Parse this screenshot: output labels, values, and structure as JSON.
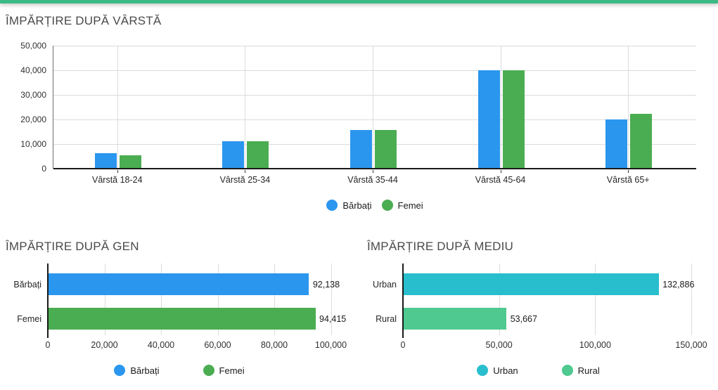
{
  "page": {
    "accent_color": "#3CB985",
    "background": "#ffffff",
    "gridline_color": "#dcdcdc",
    "axis_color": "#1a1a1a",
    "title_color": "#4a4a4a"
  },
  "chart_data": [
    {
      "type": "bar",
      "subtype": "grouped_vertical",
      "title": "ÎMPĂRȚIRE DUPĂ VÂRSTĂ",
      "categories": [
        "Vârstă 18-24",
        "Vârstă 25-34",
        "Vârstă 35-44",
        "Vârstă 45-64",
        "Vârstă 65+"
      ],
      "series": [
        {
          "name": "Bărbați",
          "color": "#2B96EE",
          "values": [
            6300,
            11200,
            15800,
            40000,
            20000
          ]
        },
        {
          "name": "Femei",
          "color": "#4BAD52",
          "values": [
            5500,
            11200,
            15800,
            40000,
            22400
          ]
        }
      ],
      "ylim": [
        0,
        50000
      ],
      "ytick_step": 10000,
      "ytick_labels": [
        "0",
        "10,000",
        "20,000",
        "30,000",
        "40,000",
        "50,000"
      ],
      "grid": true,
      "legend_position": "bottom-center"
    },
    {
      "type": "bar",
      "subtype": "horizontal",
      "title": "ÎMPĂRȚIRE DUPĂ GEN",
      "categories": [
        "Bărbați",
        "Femei"
      ],
      "values": [
        92138,
        94415
      ],
      "value_labels": [
        "92,138",
        "94,415"
      ],
      "colors": [
        "#2B96EE",
        "#4BAD52"
      ],
      "xlim": [
        0,
        100000
      ],
      "xtick_step": 20000,
      "xtick_labels": [
        "0",
        "20,000",
        "40,000",
        "60,000",
        "80,000",
        "100,000"
      ],
      "grid": true,
      "legend_position": "bottom-center"
    },
    {
      "type": "bar",
      "subtype": "horizontal",
      "title": "ÎMPĂRȚIRE DUPĂ MEDIU",
      "categories": [
        "Urban",
        "Rural"
      ],
      "values": [
        132886,
        53667
      ],
      "value_labels": [
        "132,886",
        "53,667"
      ],
      "colors": [
        "#28BECD",
        "#4FC98F"
      ],
      "xlim": [
        0,
        150000
      ],
      "xtick_step": 50000,
      "xtick_labels": [
        "0",
        "50,000",
        "100,000",
        "150,000"
      ],
      "grid": true,
      "legend_position": "bottom-center"
    }
  ]
}
